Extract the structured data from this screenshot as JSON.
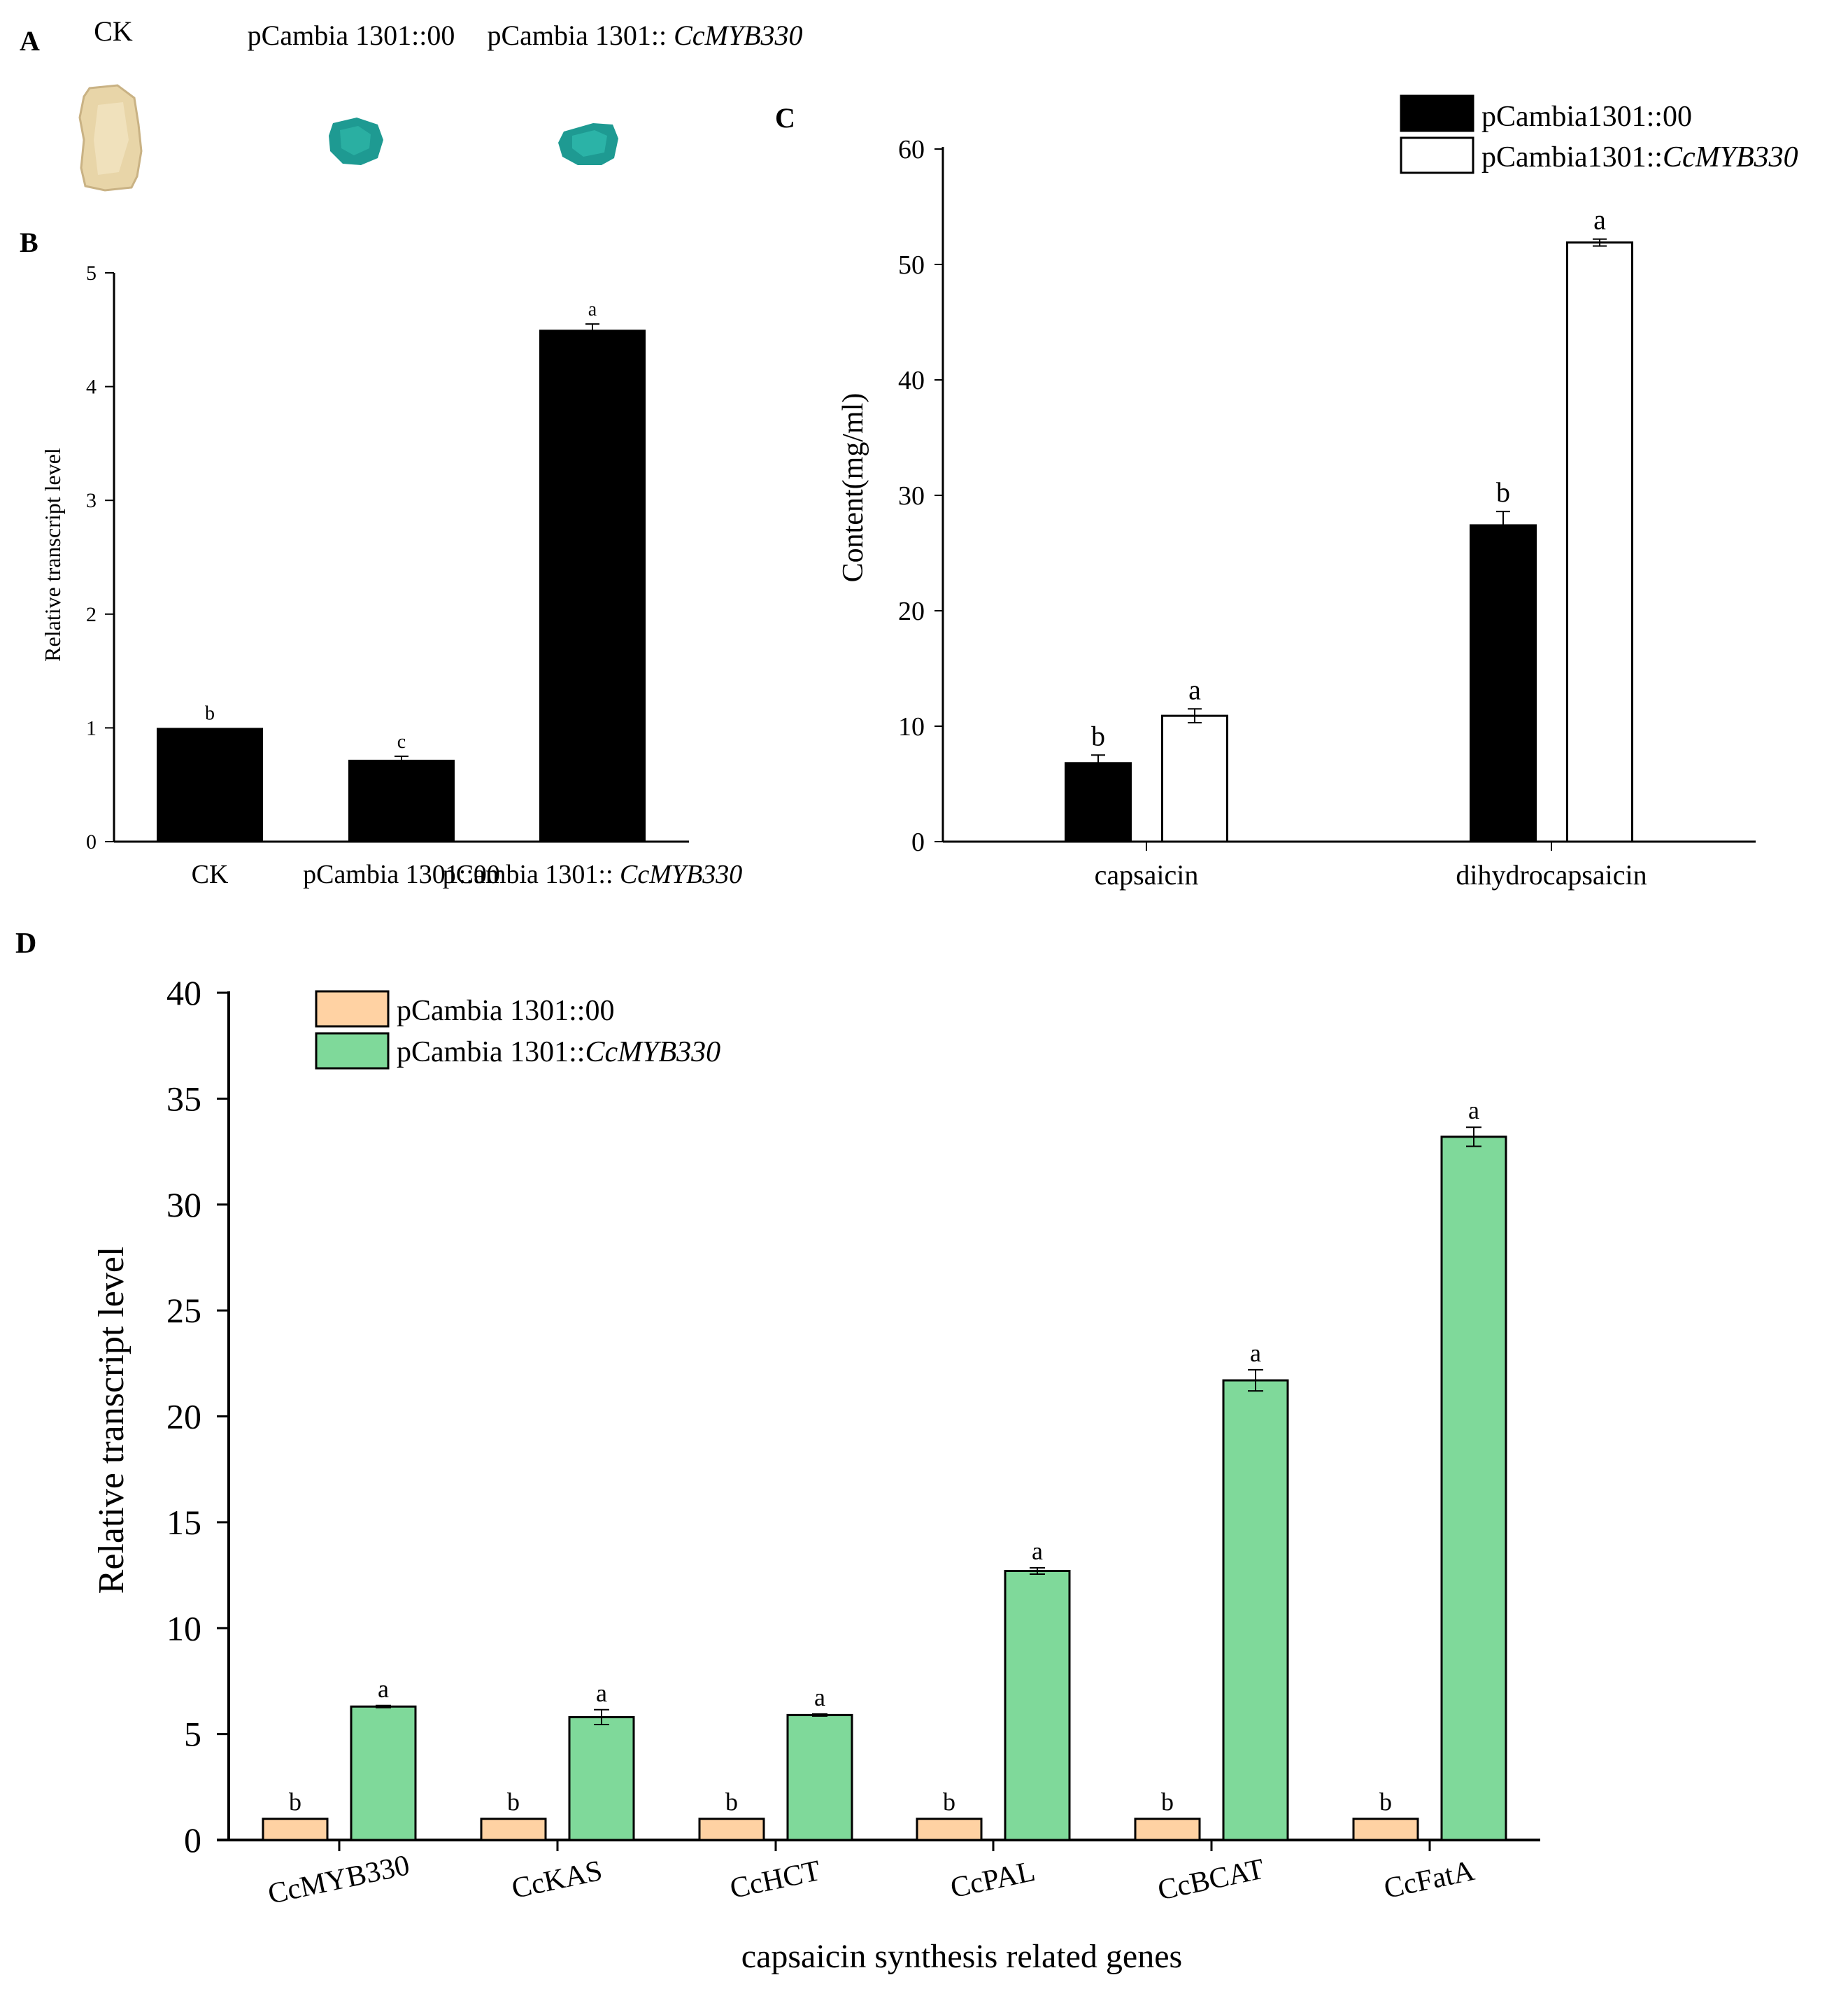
{
  "colors": {
    "black_bar": "#000000",
    "white_bar": "#ffffff",
    "orange_bar": "#ffd2a3",
    "green_bar": "#7fd99a",
    "tissue_ck": "#e8d5a8",
    "tissue_gus": "#1e9a92"
  },
  "panel_a": {
    "letter": "A",
    "labels": [
      {
        "plain": "CK",
        "italic": ""
      },
      {
        "plain": "pCambia 1301::00",
        "italic": ""
      },
      {
        "plain": "pCambia 1301:: ",
        "italic": "CcMYB330"
      }
    ]
  },
  "chart_data": [
    {
      "panel": "B",
      "letter": "B",
      "type": "bar",
      "title": "",
      "xlabel": "",
      "ylabel": "Relative transcript level",
      "ylim": [
        0,
        5
      ],
      "yticks": [
        "0",
        "1",
        "2",
        "3",
        "4",
        "5"
      ],
      "categories": [
        {
          "plain": "CK",
          "italic": ""
        },
        {
          "plain": "pCambia 1301::00",
          "italic": ""
        },
        {
          "plain": "pCambia 1301:: ",
          "italic": "CcMYB330"
        }
      ],
      "values": [
        1.0,
        0.72,
        4.5
      ],
      "errors": [
        0.0,
        0.03,
        0.05
      ],
      "significance": [
        "b",
        "c",
        "a"
      ]
    },
    {
      "panel": "C",
      "letter": "C",
      "type": "bar",
      "title": "",
      "xlabel": "",
      "ylabel": "Content(mg/ml)",
      "ylim": [
        0,
        60
      ],
      "yticks": [
        "0",
        "10",
        "20",
        "30",
        "40",
        "50",
        "60"
      ],
      "categories": [
        "capsaicin",
        "dihydrocapsaicin"
      ],
      "legend": [
        {
          "plain": "pCambia1301::00",
          "italic": ""
        },
        {
          "plain": "pCambia1301::",
          "italic": "CcMYB330"
        }
      ],
      "series": [
        {
          "name": "pCambia1301::00",
          "values": [
            6.8,
            27.4
          ],
          "errors": [
            0.7,
            1.2
          ],
          "significance": [
            "b",
            "b"
          ]
        },
        {
          "name": "pCambia1301::CcMYB330",
          "values": [
            10.9,
            51.9
          ],
          "errors": [
            0.6,
            0.3
          ],
          "significance": [
            "a",
            "a"
          ]
        }
      ]
    },
    {
      "panel": "D",
      "letter": "D",
      "type": "bar",
      "title": "",
      "xlabel": "capsaicin synthesis related genes",
      "ylabel": "Relative transcript level",
      "ylim": [
        0,
        40
      ],
      "yticks": [
        "0",
        "5",
        "10",
        "15",
        "20",
        "25",
        "30",
        "35",
        "40"
      ],
      "categories": [
        "CcMYB330",
        "CcKAS",
        "CcHCT",
        "CcPAL",
        "CcBCAT",
        "CcFatA"
      ],
      "legend": [
        {
          "plain": "pCambia 1301::00",
          "italic": ""
        },
        {
          "plain": "pCambia 1301::",
          "italic": "CcMYB330"
        }
      ],
      "series": [
        {
          "name": "pCambia 1301::00",
          "values": [
            1,
            1,
            1,
            1,
            1,
            1
          ],
          "errors": [
            0,
            0,
            0,
            0,
            0,
            0
          ],
          "significance": [
            "b",
            "b",
            "b",
            "b",
            "b",
            "b"
          ]
        },
        {
          "name": "pCambia 1301::CcMYB330",
          "values": [
            6.3,
            5.8,
            5.9,
            12.7,
            21.7,
            33.2
          ],
          "errors": [
            0.05,
            0.35,
            0.05,
            0.15,
            0.5,
            0.45
          ],
          "significance": [
            "a",
            "a",
            "a",
            "a",
            "a",
            "a"
          ]
        }
      ]
    }
  ]
}
